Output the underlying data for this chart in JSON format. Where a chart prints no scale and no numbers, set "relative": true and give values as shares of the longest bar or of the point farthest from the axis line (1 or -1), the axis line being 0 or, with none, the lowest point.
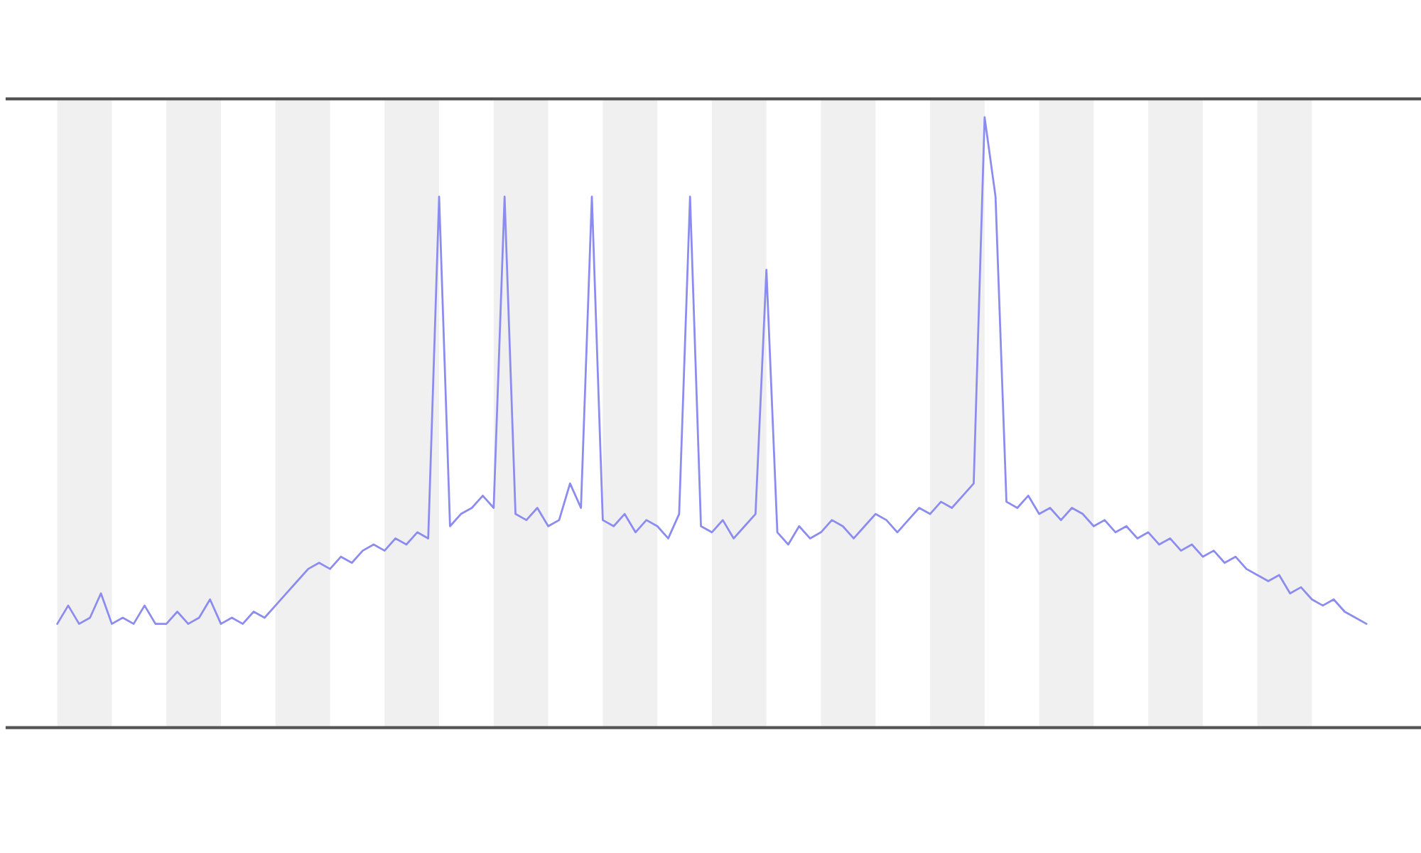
{
  "chart_data": {
    "type": "line",
    "relative": true,
    "marker": "none",
    "line_style": "solid",
    "categories": [
      null,
      null,
      null,
      null,
      null,
      null,
      null,
      null,
      null,
      null,
      null,
      null,
      null,
      null,
      null,
      null,
      null,
      null,
      null,
      null,
      null,
      null,
      null,
      null,
      null,
      null,
      null,
      null,
      null,
      null,
      null,
      null,
      null,
      null,
      null,
      null,
      null,
      null,
      null,
      null,
      null,
      null,
      null,
      null,
      null,
      null,
      null,
      null,
      null,
      null,
      null,
      null,
      null,
      null,
      null,
      null,
      null,
      null,
      null,
      null,
      null,
      null,
      null,
      null,
      null,
      null,
      null,
      null,
      null,
      null,
      null,
      null,
      null,
      null,
      null,
      null,
      null,
      null,
      null,
      null,
      null,
      null,
      null,
      null,
      null,
      null,
      null,
      null,
      null,
      null,
      null,
      null,
      null,
      null,
      null,
      null,
      null,
      null,
      null,
      null,
      null,
      null,
      null,
      null,
      null,
      null,
      null,
      null,
      null,
      null,
      null,
      null,
      null,
      null,
      null,
      null,
      null,
      null,
      null,
      null,
      null
    ],
    "series": [
      {
        "color": "#8c8cf0",
        "values": [
          0.17,
          0.2,
          0.17,
          0.18,
          0.22,
          0.17,
          0.18,
          0.17,
          0.2,
          0.17,
          0.17,
          0.19,
          0.17,
          0.18,
          0.21,
          0.17,
          0.18,
          0.17,
          0.19,
          0.18,
          0.2,
          0.22,
          0.24,
          0.26,
          0.27,
          0.26,
          0.28,
          0.27,
          0.29,
          0.3,
          0.29,
          0.31,
          0.3,
          0.32,
          0.31,
          0.87,
          0.33,
          0.35,
          0.36,
          0.38,
          0.36,
          0.87,
          0.35,
          0.34,
          0.36,
          0.33,
          0.34,
          0.4,
          0.36,
          0.87,
          0.34,
          0.33,
          0.35,
          0.32,
          0.34,
          0.33,
          0.31,
          0.35,
          0.87,
          0.33,
          0.32,
          0.34,
          0.31,
          0.33,
          0.35,
          0.75,
          0.32,
          0.3,
          0.33,
          0.31,
          0.32,
          0.34,
          0.33,
          0.31,
          0.33,
          0.35,
          0.34,
          0.32,
          0.34,
          0.36,
          0.35,
          0.37,
          0.36,
          0.38,
          0.4,
          1.0,
          0.87,
          0.37,
          0.36,
          0.38,
          0.35,
          0.36,
          0.34,
          0.36,
          0.35,
          0.33,
          0.34,
          0.32,
          0.33,
          0.31,
          0.32,
          0.3,
          0.31,
          0.29,
          0.3,
          0.28,
          0.29,
          0.27,
          0.28,
          0.26,
          0.25,
          0.24,
          0.25,
          0.22,
          0.23,
          0.21,
          0.2,
          0.21,
          0.19,
          0.18,
          0.17
        ]
      }
    ]
  }
}
